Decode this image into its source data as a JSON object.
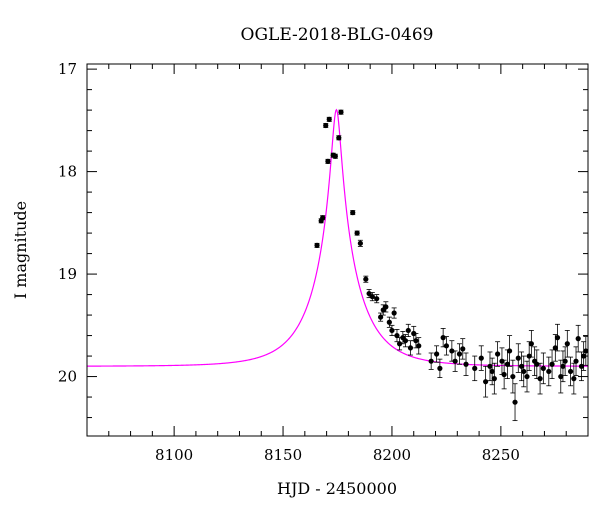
{
  "chart_data": {
    "type": "scatter",
    "title": "OGLE-2018-BLG-0469",
    "xlabel": "HJD - 2450000",
    "ylabel": "I magnitude",
    "xlim": [
      8060,
      8290
    ],
    "ylim": [
      20.58,
      16.95
    ],
    "y_inverted": true,
    "grid": false,
    "legend": "none",
    "x_ticks": [
      8100,
      8150,
      8200,
      8250
    ],
    "y_ticks": [
      17,
      18,
      19,
      20
    ],
    "colors": {
      "points": "#000000",
      "model": "#ff00ff"
    },
    "model": {
      "name": "",
      "t0": 8174.5,
      "u0": 0.1,
      "tE": 20,
      "baseline": 19.9
    },
    "series": [
      {
        "name": "",
        "points": [
          [
            8165.6,
            18.72,
            0.02
          ],
          [
            8167.5,
            18.48,
            0.02
          ],
          [
            8168.2,
            18.45,
            0.02
          ],
          [
            8169.6,
            17.55,
            0.02
          ],
          [
            8170.6,
            17.9,
            0.02
          ],
          [
            8171.2,
            17.49,
            0.02
          ],
          [
            8173.0,
            17.84,
            0.02
          ],
          [
            8174.0,
            17.85,
            0.02
          ],
          [
            8175.6,
            17.67,
            0.02
          ],
          [
            8176.6,
            17.42,
            0.02
          ],
          [
            8182.0,
            18.4,
            0.02
          ],
          [
            8184.0,
            18.6,
            0.02
          ],
          [
            8185.5,
            18.7,
            0.03
          ],
          [
            8188.0,
            19.05,
            0.03
          ],
          [
            8189.5,
            19.19,
            0.04
          ],
          [
            8191.0,
            19.22,
            0.04
          ],
          [
            8193.0,
            19.24,
            0.04
          ],
          [
            8194.8,
            19.42,
            0.04
          ],
          [
            8196.0,
            19.35,
            0.05
          ],
          [
            8197.2,
            19.32,
            0.05
          ],
          [
            8198.8,
            19.47,
            0.05
          ],
          [
            8200.0,
            19.55,
            0.05
          ],
          [
            8201.0,
            19.38,
            0.05
          ],
          [
            8202.3,
            19.6,
            0.06
          ],
          [
            8203.5,
            19.68,
            0.06
          ],
          [
            8205.0,
            19.62,
            0.06
          ],
          [
            8206.2,
            19.65,
            0.06
          ],
          [
            8207.5,
            19.55,
            0.06
          ],
          [
            8208.5,
            19.72,
            0.07
          ],
          [
            8210.0,
            19.58,
            0.07
          ],
          [
            8211.0,
            19.65,
            0.07
          ],
          [
            8212.3,
            19.7,
            0.08
          ],
          [
            8218.0,
            19.85,
            0.08
          ],
          [
            8220.5,
            19.78,
            0.08
          ],
          [
            8222.0,
            19.92,
            0.09
          ],
          [
            8223.5,
            19.62,
            0.09
          ],
          [
            8225.0,
            19.7,
            0.09
          ],
          [
            8227.5,
            19.75,
            0.1
          ],
          [
            8229.0,
            19.85,
            0.1
          ],
          [
            8231.0,
            19.78,
            0.1
          ],
          [
            8232.5,
            19.73,
            0.1
          ],
          [
            8234.0,
            19.88,
            0.11
          ],
          [
            8238.0,
            19.92,
            0.12
          ],
          [
            8241.0,
            19.82,
            0.12
          ],
          [
            8243.0,
            20.05,
            0.15
          ],
          [
            8245.0,
            19.9,
            0.14
          ],
          [
            8246.0,
            19.95,
            0.13
          ],
          [
            8247.0,
            20.02,
            0.15
          ],
          [
            8248.5,
            19.78,
            0.12
          ],
          [
            8250.5,
            19.85,
            0.13
          ],
          [
            8251.5,
            19.98,
            0.14
          ],
          [
            8253.0,
            19.88,
            0.14
          ],
          [
            8254.0,
            19.75,
            0.15
          ],
          [
            8255.5,
            20.0,
            0.16
          ],
          [
            8256.5,
            20.25,
            0.18
          ],
          [
            8258.0,
            19.82,
            0.14
          ],
          [
            8259.5,
            19.9,
            0.14
          ],
          [
            8260.5,
            19.95,
            0.15
          ],
          [
            8262.0,
            20.0,
            0.15
          ],
          [
            8263.0,
            19.8,
            0.14
          ],
          [
            8264.0,
            19.68,
            0.13
          ],
          [
            8265.5,
            19.85,
            0.14
          ],
          [
            8266.5,
            19.88,
            0.14
          ],
          [
            8268.0,
            20.02,
            0.15
          ],
          [
            8269.5,
            19.92,
            0.15
          ],
          [
            8272.0,
            19.95,
            0.14
          ],
          [
            8273.5,
            19.88,
            0.14
          ],
          [
            8275.0,
            19.72,
            0.13
          ],
          [
            8276.0,
            19.62,
            0.13
          ],
          [
            8277.5,
            20.0,
            0.16
          ],
          [
            8278.5,
            19.9,
            0.15
          ],
          [
            8279.5,
            19.85,
            0.14
          ],
          [
            8280.5,
            19.68,
            0.13
          ],
          [
            8282.0,
            19.95,
            0.14
          ],
          [
            8283.5,
            20.02,
            0.15
          ],
          [
            8284.5,
            19.85,
            0.14
          ],
          [
            8285.5,
            19.63,
            0.13
          ],
          [
            8287.0,
            19.9,
            0.14
          ],
          [
            8288.0,
            19.8,
            0.14
          ],
          [
            8289.0,
            19.75,
            0.14
          ]
        ]
      }
    ]
  }
}
